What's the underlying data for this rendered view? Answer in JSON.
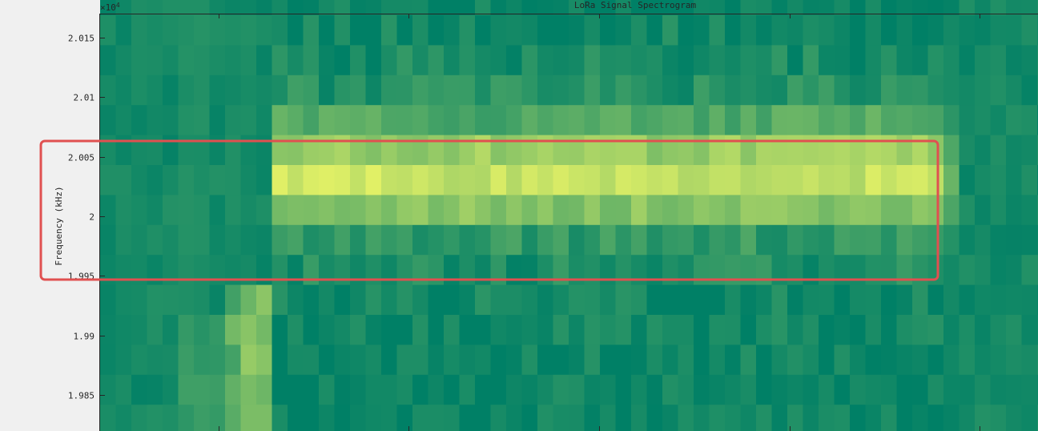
{
  "chart_data": {
    "type": "heatmap",
    "title": "LoRa Signal Spectrogram",
    "ylabel": "Frequency (kHz)",
    "xlabel": "",
    "y_exponent_label": "×10",
    "y_exponent": "4",
    "ylim": [
      19982,
      20017
    ],
    "yticks": [
      19985,
      19990,
      19995,
      20000,
      20005,
      20010,
      20015
    ],
    "ytick_labels": [
      "1.985",
      "1.99",
      "1.995",
      "2",
      "2.005",
      "2.01",
      "2.015"
    ],
    "grid": false,
    "colormap": "summer",
    "colors": {
      "low": "#008066",
      "high": "#ffff66",
      "highlight_box": "#e05050",
      "background": "#f0f0f0"
    },
    "annotation": {
      "type": "rectangle",
      "y_range": [
        19994.5,
        20006
      ]
    }
  }
}
